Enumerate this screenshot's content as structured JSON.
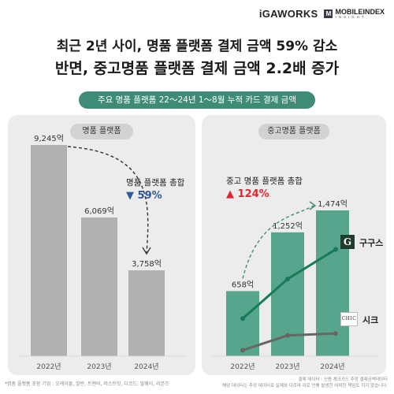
{
  "brand": {
    "igaworks": "iGAWORKS",
    "mobileindex_logo": "M",
    "mobileindex": "MOBILEINDEX",
    "insight": "INSIGHT"
  },
  "title": {
    "line1": "최근 2년 사이, 명품 플랫폼 결제 금액 59% 감소",
    "line2": "반면, 중고명품 플랫폼 결제 금액 2.2배 증가"
  },
  "subtitle_pill": "주요 명품 플랫폼 22～24년 1～8월 누적 카드 결제 금액",
  "colors": {
    "accent_green": "#3e8c78",
    "bar_gray": "#b0b0b0",
    "bar_green": "#57a58c",
    "line_green": "#177a5b",
    "line_gray": "#666666",
    "down_blue": "#2e5a9a",
    "up_red": "#e0262f"
  },
  "chart_data": [
    {
      "type": "bar",
      "title": "명품 플랫폼",
      "categories": [
        "2022년",
        "2023년",
        "2024년"
      ],
      "values": [
        9245,
        6069,
        3758
      ],
      "value_labels": [
        "9,245억",
        "6,069억",
        "3,758억"
      ],
      "unit": "억",
      "annotation": {
        "label": "명품 플랫폼 총합",
        "change": "▼ 59%"
      },
      "grid": false
    },
    {
      "type": "bar",
      "title": "중고명품 플랫폼",
      "categories": [
        "2022년",
        "2023년",
        "2024년"
      ],
      "values": [
        658,
        1252,
        1474
      ],
      "value_labels": [
        "658억",
        "1,252억",
        "1,474억"
      ],
      "unit": "억",
      "annotation": {
        "label": "중고 명품 플랫폼 총합",
        "change": "▲ 124%"
      },
      "series": [
        {
          "name": "구구스",
          "values": [
            380,
            780,
            1080
          ]
        },
        {
          "name": "시크",
          "values": [
            60,
            210,
            230
          ]
        }
      ],
      "grid": false
    }
  ],
  "logos": {
    "gugus": "G",
    "chic": "CHIC"
  },
  "footer": {
    "left": "*명품 플랫폼 포함 기업 : 오케이몰, 발란, 트렌비, 머스트잇, 디코드, 필웨이, 리본즈",
    "right_line1": "결제 데이터 : 신용·체크카드 추정 결제금액데이터",
    "right_line2": "해당 데이터는 추정 데이터로 실제와 다르며 이로 인해 발생한 어떠한 책임도 지지 않습니다."
  }
}
